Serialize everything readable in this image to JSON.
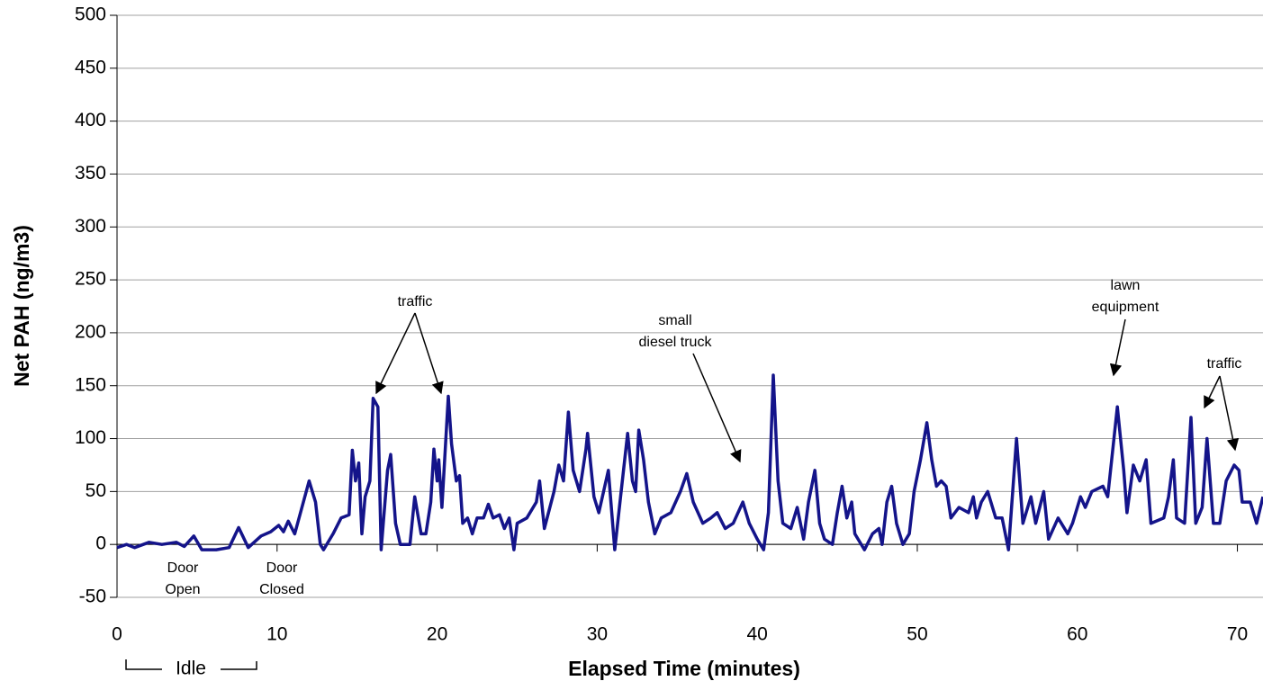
{
  "chart_data": {
    "type": "line",
    "ylabel": "Net PAH (ng/m3)",
    "xlabel": "Elapsed Time (minutes)",
    "color": "#14148a",
    "grid": true,
    "xlim": [
      0,
      71.6
    ],
    "xticks": [
      0,
      10,
      20,
      30,
      40,
      50,
      60,
      70
    ],
    "ylim": [
      -50,
      500
    ],
    "yticks": [
      -50,
      0,
      50,
      100,
      150,
      200,
      250,
      300,
      350,
      400,
      450,
      500
    ],
    "annotations": [
      {
        "text": [
          "traffic"
        ]
      },
      {
        "text": [
          "small",
          "diesel truck"
        ]
      },
      {
        "text": [
          "lawn",
          "equipment"
        ]
      },
      {
        "text": [
          "traffic"
        ]
      },
      {
        "text": [
          "Door",
          "Open"
        ]
      },
      {
        "text": [
          "Door",
          "Closed"
        ]
      },
      {
        "text": [
          "Idle"
        ]
      }
    ],
    "x": [
      0,
      0.6,
      1.1,
      2.0,
      2.8,
      3.7,
      4.2,
      4.8,
      5.3,
      6.2,
      7.0,
      7.6,
      8.2,
      9.0,
      9.6,
      10.1,
      10.4,
      10.7,
      11.1,
      12.0,
      12.4,
      12.7,
      12.9,
      13.5,
      14.0,
      14.5,
      14.7,
      14.9,
      15.1,
      15.3,
      15.5,
      15.8,
      16.0,
      16.3,
      16.5,
      16.9,
      17.1,
      17.4,
      17.7,
      18.3,
      18.6,
      19.0,
      19.3,
      19.6,
      19.8,
      20.0,
      20.1,
      20.3,
      20.7,
      20.9,
      21.2,
      21.4,
      21.6,
      21.9,
      22.2,
      22.5,
      22.9,
      23.2,
      23.5,
      23.9,
      24.2,
      24.5,
      24.8,
      25.0,
      25.6,
      26.2,
      26.4,
      26.7,
      27.3,
      27.6,
      27.9,
      28.2,
      28.5,
      28.9,
      29.3,
      29.4,
      29.8,
      30.1,
      30.7,
      31.1,
      31.5,
      31.9,
      32.2,
      32.4,
      32.6,
      32.9,
      33.2,
      33.6,
      34.0,
      34.6,
      35.2,
      35.6,
      36.0,
      36.6,
      37.1,
      37.5,
      38.0,
      38.5,
      39.1,
      39.5,
      40.0,
      40.4,
      40.7,
      41.0,
      41.3,
      41.6,
      42.1,
      42.5,
      42.9,
      43.2,
      43.6,
      43.9,
      44.2,
      44.7,
      45.0,
      45.3,
      45.6,
      45.9,
      46.1,
      46.7,
      47.2,
      47.6,
      47.8,
      48.1,
      48.4,
      48.7,
      49.1,
      49.5,
      49.8,
      50.2,
      50.6,
      50.9,
      51.2,
      51.5,
      51.8,
      52.1,
      52.6,
      53.2,
      53.5,
      53.7,
      54.0,
      54.4,
      54.9,
      55.3,
      55.7,
      56.2,
      56.6,
      57.1,
      57.4,
      57.9,
      58.2,
      58.8,
      59.4,
      59.7,
      60.2,
      60.5,
      60.9,
      61.6,
      61.9,
      62.5,
      62.9,
      63.1,
      63.5,
      63.9,
      64.3,
      64.6,
      65.4,
      65.7,
      66.0,
      66.2,
      66.7,
      67.1,
      67.4,
      67.8,
      68.1,
      68.5,
      68.9,
      69.3,
      69.8,
      70.1,
      70.3,
      70.8,
      71.2,
      71.6
    ],
    "values": [
      -3,
      0,
      -3,
      2,
      0,
      2,
      -2,
      8,
      -5,
      -5,
      -3,
      16,
      -3,
      8,
      12,
      18,
      12,
      22,
      10,
      60,
      40,
      0,
      -5,
      10,
      25,
      28,
      89,
      60,
      77,
      10,
      45,
      60,
      138,
      130,
      -5,
      70,
      85,
      20,
      0,
      0,
      45,
      10,
      10,
      40,
      90,
      60,
      80,
      35,
      140,
      95,
      60,
      65,
      20,
      25,
      10,
      25,
      25,
      38,
      25,
      28,
      15,
      25,
      -5,
      20,
      25,
      40,
      60,
      15,
      50,
      75,
      60,
      125,
      70,
      50,
      90,
      105,
      45,
      30,
      70,
      -5,
      50,
      105,
      60,
      50,
      108,
      80,
      40,
      10,
      25,
      30,
      50,
      67,
      40,
      20,
      25,
      30,
      15,
      20,
      40,
      20,
      5,
      -5,
      30,
      160,
      60,
      20,
      15,
      35,
      5,
      40,
      70,
      20,
      5,
      0,
      30,
      55,
      25,
      40,
      10,
      -5,
      10,
      15,
      0,
      40,
      55,
      20,
      0,
      10,
      50,
      80,
      115,
      80,
      55,
      60,
      55,
      25,
      35,
      30,
      45,
      25,
      40,
      50,
      25,
      25,
      -5,
      100,
      20,
      45,
      20,
      50,
      5,
      25,
      10,
      20,
      45,
      35,
      50,
      55,
      45,
      130,
      70,
      30,
      75,
      60,
      80,
      20,
      25,
      45,
      80,
      25,
      20,
      120,
      20,
      35,
      100,
      20,
      20,
      60,
      75,
      70,
      40,
      40,
      20,
      45
    ]
  }
}
